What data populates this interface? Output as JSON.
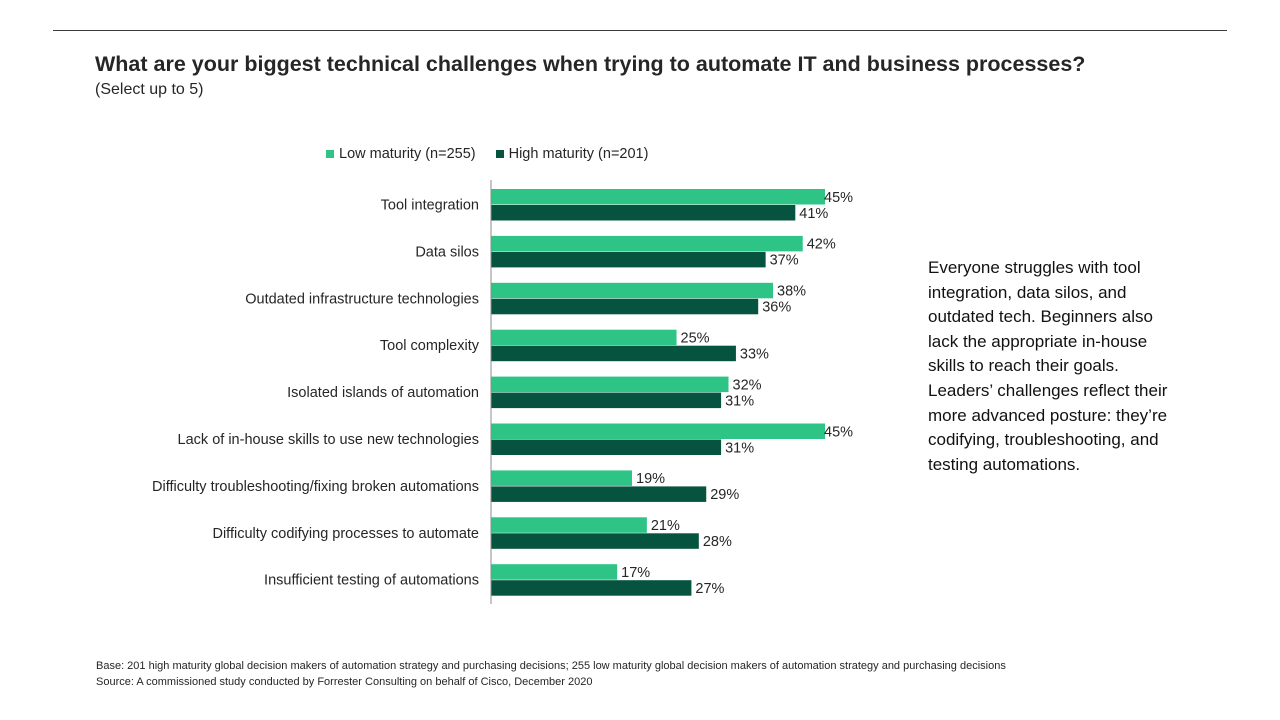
{
  "header": {
    "title": "What are your biggest technical challenges when trying to automate IT and business processes?",
    "subtitle": "(Select up to 5)"
  },
  "chart_data": {
    "type": "bar",
    "orientation": "horizontal",
    "categories": [
      "Tool integration",
      "Data silos",
      "Outdated infrastructure technologies",
      "Tool complexity",
      "Isolated islands of automation",
      "Lack of in-house skills to use new technologies",
      "Difficulty troubleshooting/fixing broken automations",
      "Difficulty codifying processes to automate",
      "Insufficient testing of automations"
    ],
    "series": [
      {
        "name": "Low maturity (n=255)",
        "color": "#2ec486",
        "values": [
          45,
          42,
          38,
          25,
          32,
          45,
          19,
          21,
          17
        ]
      },
      {
        "name": "High maturity (n=201)",
        "color": "#065440",
        "values": [
          41,
          37,
          36,
          33,
          31,
          31,
          29,
          28,
          27
        ]
      }
    ],
    "value_format": "{v}%",
    "xlim": [
      0,
      50
    ],
    "grid": false,
    "legend_position": "top"
  },
  "sidebar_text": {
    "lines": [
      "Everyone struggles with tool",
      "integration, data silos, and",
      "outdated tech. Beginners also",
      "lack the appropriate in-house",
      "skills to reach their goals.",
      "Leaders’ challenges reflect their",
      "more advanced posture: they’re",
      "codifying, troubleshooting, and",
      "testing automations."
    ]
  },
  "footer": {
    "base": "Base: 201 high maturity global decision makers of automation strategy and purchasing decisions; 255 low maturity global decision makers of automation strategy and purchasing decisions",
    "source": "Source: A commissioned study conducted by Forrester Consulting on behalf of Cisco, December 2020"
  }
}
